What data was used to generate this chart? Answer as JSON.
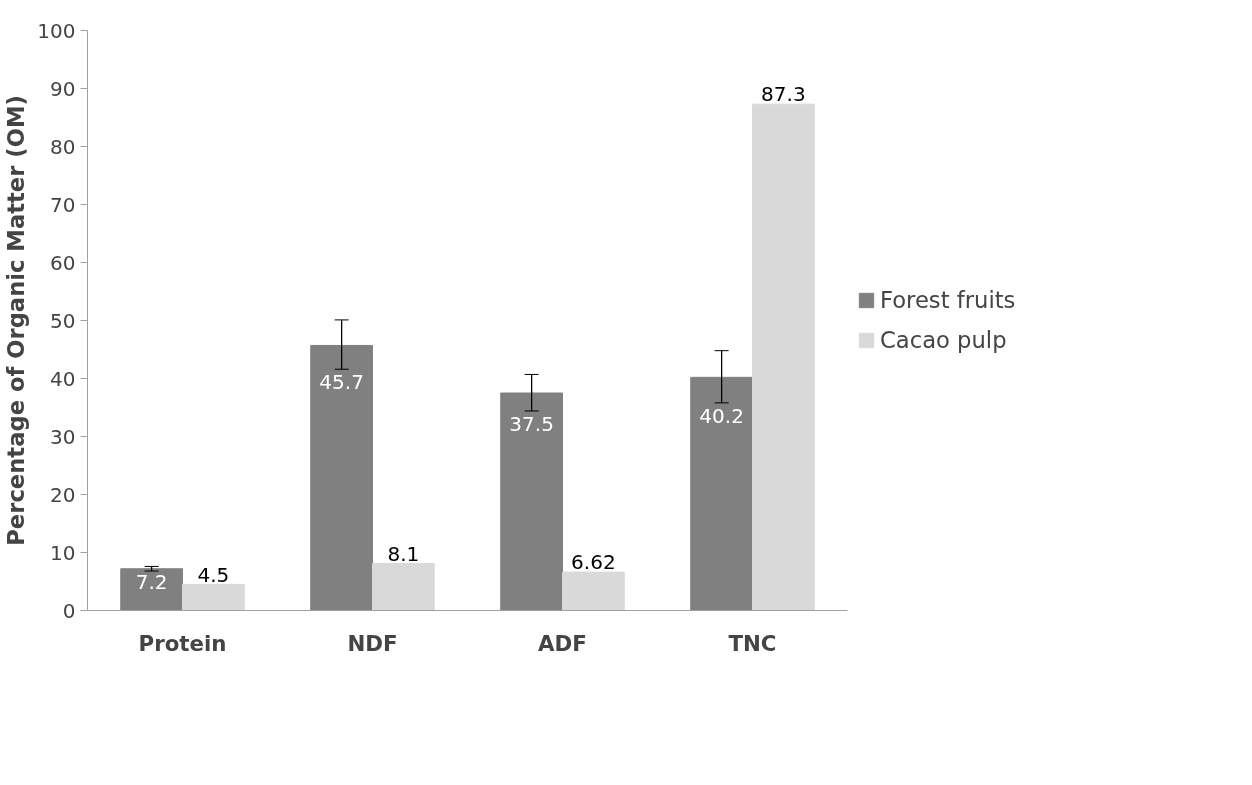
{
  "chart_data": {
    "type": "bar",
    "ylabel": "Percentage of Organic Matter (OM)",
    "categories": [
      "Protein",
      "NDF",
      "ADF",
      "TNC"
    ],
    "series": [
      {
        "name": "Forest fruits",
        "color": "#808080",
        "values": [
          7.2,
          45.7,
          37.5,
          40.2
        ],
        "errors": [
          [
            6.8,
            7.6
          ],
          [
            41.6,
            50.1
          ],
          [
            34.4,
            40.7
          ],
          [
            35.8,
            44.8
          ]
        ]
      },
      {
        "name": "Cacao pulp",
        "color": "#d9d9d9",
        "values": [
          4.5,
          8.1,
          6.62,
          87.3
        ]
      }
    ],
    "ylim": [
      0,
      100
    ],
    "yticks": [
      0,
      10,
      20,
      30,
      40,
      50,
      60,
      70,
      80,
      90,
      100
    ],
    "data_labels": true,
    "grid": false,
    "legend": "right"
  }
}
